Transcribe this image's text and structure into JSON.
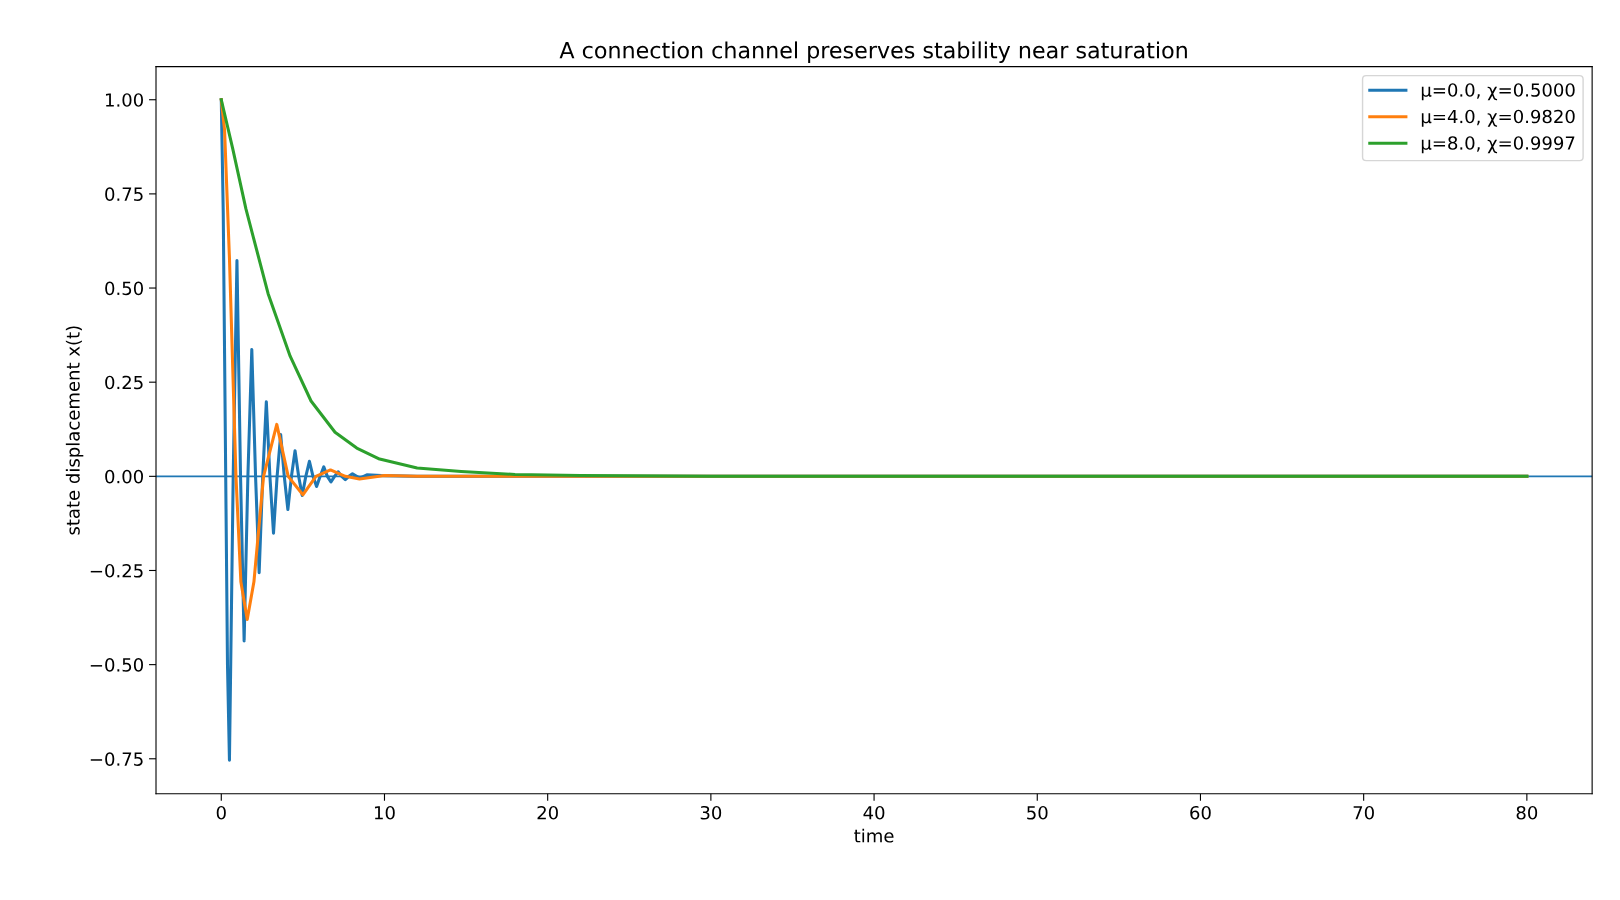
{
  "chart_data": {
    "type": "line",
    "title": "A connection channel preserves stability near saturation",
    "xlabel": "time",
    "ylabel": "state displacement x(t)",
    "xlim": [
      -4,
      84
    ],
    "ylim": [
      -0.843,
      1.088
    ],
    "xticks": [
      0,
      10,
      20,
      30,
      40,
      50,
      60,
      70,
      80
    ],
    "yticks": [
      {
        "value": -0.75,
        "label": "−0.75"
      },
      {
        "value": -0.5,
        "label": "−0.50"
      },
      {
        "value": -0.25,
        "label": "−0.25"
      },
      {
        "value": 0,
        "label": "0.00"
      },
      {
        "value": 0.25,
        "label": "0.25"
      },
      {
        "value": 0.5,
        "label": "0.50"
      },
      {
        "value": 0.75,
        "label": "0.75"
      },
      {
        "value": 1.0,
        "label": "1.00"
      }
    ],
    "grid": false,
    "legend": "top right",
    "marker": "none",
    "line_style": "solid",
    "ref_lines": [
      {
        "axis": "y",
        "value": 0,
        "label": null,
        "color": "#1f77b4"
      }
    ],
    "series": [
      {
        "name": "μ=0.0, χ=0.5000",
        "color": "#1f77b4",
        "x": [
          0,
          0.12,
          0.25,
          0.38,
          0.5,
          0.73,
          0.96,
          1.18,
          1.4,
          1.63,
          1.87,
          2.1,
          2.32,
          2.54,
          2.76,
          2.98,
          3.2,
          3.42,
          3.64,
          3.86,
          4.08,
          4.3,
          4.52,
          4.74,
          4.96,
          5.18,
          5.4,
          5.62,
          5.84,
          6.06,
          6.28,
          6.5,
          6.72,
          6.94,
          7.16,
          7.38,
          7.6,
          7.82,
          8.04,
          8.5,
          8.92,
          9.8,
          12,
          14,
          20,
          40,
          80
        ],
        "values": [
          1.0,
          0.7,
          0.1,
          -0.5,
          -0.754,
          0,
          0.573,
          0,
          -0.437,
          0,
          0.337,
          0,
          -0.256,
          0,
          0.198,
          0,
          -0.151,
          0,
          0.111,
          0,
          -0.088,
          0,
          0.068,
          0,
          -0.051,
          0,
          0.04,
          0,
          -0.027,
          0,
          0.025,
          0,
          -0.015,
          0,
          0.012,
          0,
          -0.009,
          0,
          0.007,
          -0.005,
          0.004,
          0.002,
          0,
          0,
          0,
          0,
          0
        ]
      },
      {
        "name": "μ=4.0, χ=0.9820",
        "color": "#ff7f0e",
        "x": [
          0,
          0.2,
          0.5,
          0.9,
          1.2,
          1.59,
          2.0,
          2.59,
          3.4,
          4.1,
          5.0,
          5.8,
          6.69,
          7.6,
          8.47,
          10,
          12,
          20,
          40,
          80
        ],
        "values": [
          1.0,
          0.92,
          0.58,
          0.0,
          -0.28,
          -0.38,
          -0.28,
          0.0,
          0.138,
          0.0,
          -0.049,
          0.0,
          0.017,
          0.0,
          -0.007,
          0.002,
          0,
          0,
          0,
          0
        ]
      },
      {
        "name": "μ=8.0, χ=0.9997",
        "color": "#2ca02c",
        "x": [
          0,
          0.7,
          1.51,
          2.87,
          4.22,
          5.5,
          6.97,
          8.3,
          9.7,
          12,
          14.7,
          18,
          22,
          30,
          50,
          80
        ],
        "values": [
          1.0,
          0.87,
          0.71,
          0.485,
          0.319,
          0.2,
          0.117,
          0.075,
          0.046,
          0.022,
          0.013,
          0.005,
          0.002,
          0,
          0,
          0
        ]
      }
    ]
  }
}
